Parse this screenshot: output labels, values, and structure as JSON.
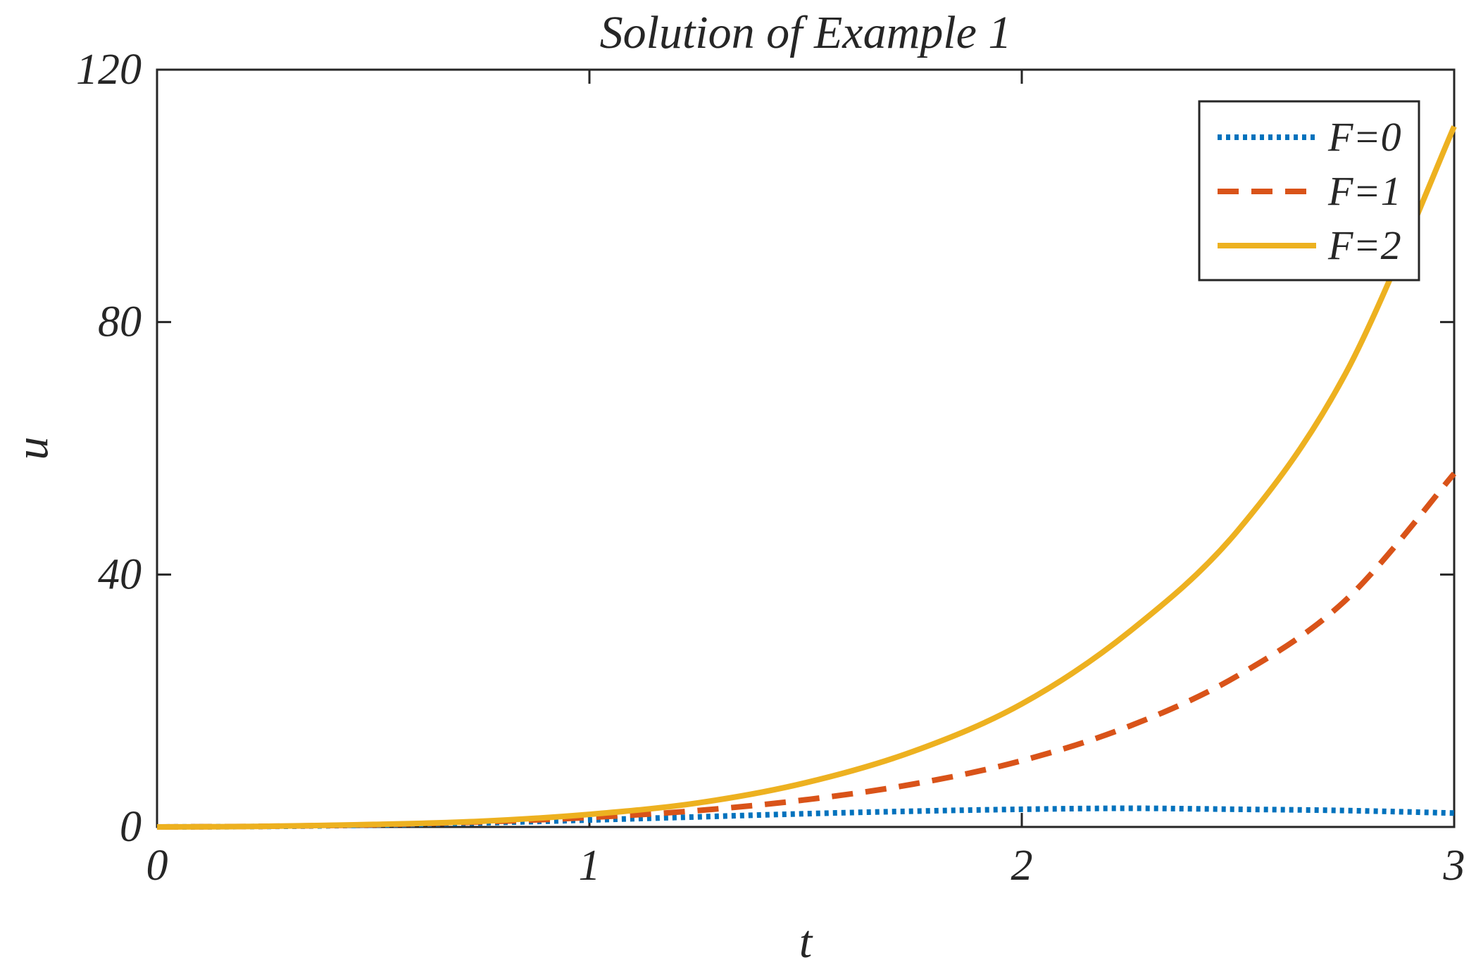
{
  "chart_data": {
    "type": "line",
    "title": "Solution of Example 1",
    "xlabel": "t",
    "ylabel": "u",
    "xlim": [
      0,
      3
    ],
    "ylim": [
      0,
      120
    ],
    "xticks": [
      0,
      1,
      2,
      3
    ],
    "xtick_labels": [
      "0",
      "1",
      "2",
      "3"
    ],
    "yticks": [
      0,
      40,
      80,
      120
    ],
    "ytick_labels": [
      "0",
      "40",
      "80",
      "120"
    ],
    "grid": false,
    "legend_position": "top-right",
    "series": [
      {
        "name": "F=0",
        "style": "dotted",
        "color": "#0072BD",
        "x": [
          0,
          0.25,
          0.5,
          0.75,
          1.0,
          1.25,
          1.5,
          1.75,
          2.0,
          2.25,
          2.5,
          2.75,
          3.0
        ],
        "y": [
          0,
          0.08,
          0.3,
          0.65,
          1.1,
          1.6,
          2.1,
          2.5,
          2.8,
          2.95,
          2.8,
          2.6,
          2.2
        ]
      },
      {
        "name": "F=1",
        "style": "dashed",
        "color": "#D95319",
        "x": [
          0,
          0.25,
          0.5,
          0.75,
          1.0,
          1.25,
          1.5,
          1.75,
          2.0,
          2.25,
          2.5,
          2.75,
          3.0
        ],
        "y": [
          0,
          0.1,
          0.35,
          0.8,
          1.5,
          2.6,
          4.3,
          6.8,
          10.5,
          16,
          24,
          36,
          56
        ]
      },
      {
        "name": "F=2",
        "style": "solid",
        "color": "#EDB120",
        "x": [
          0,
          0.25,
          0.5,
          0.75,
          1.0,
          1.25,
          1.5,
          1.75,
          2.0,
          2.25,
          2.5,
          2.75,
          3.0
        ],
        "y": [
          0,
          0.1,
          0.4,
          0.9,
          2.0,
          3.8,
          7.0,
          12.0,
          19.5,
          31,
          47,
          72,
          111
        ]
      }
    ]
  }
}
